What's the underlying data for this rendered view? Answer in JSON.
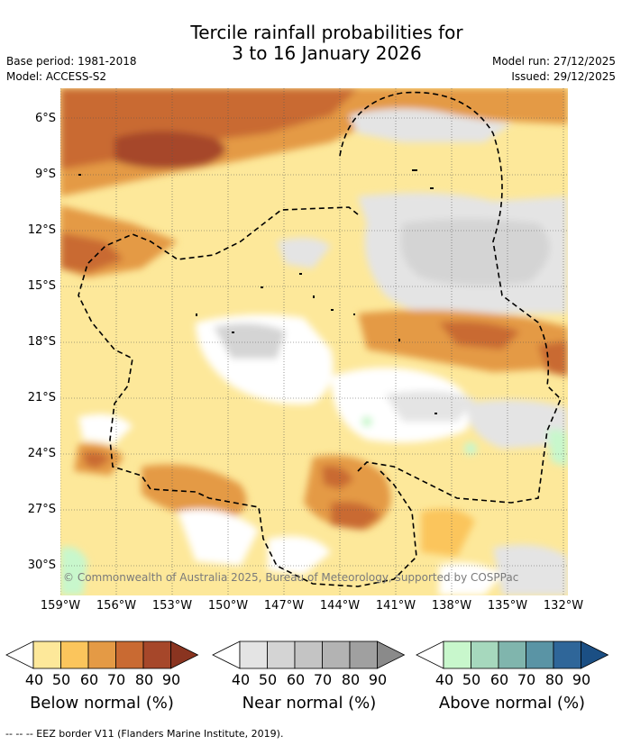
{
  "header": {
    "title_line1": "Tercile rainfall probabilities for",
    "title_line2": "3 to 16 January 2026",
    "base_period": "Base period: 1981-2018",
    "model": "Model: ACCESS-S2",
    "model_run": "Model run: 27/12/2025",
    "issued": "Issued: 29/12/2025"
  },
  "map": {
    "lat_labels": [
      "6°S",
      "9°S",
      "12°S",
      "15°S",
      "18°S",
      "21°S",
      "24°S",
      "27°S",
      "30°S"
    ],
    "lon_labels": [
      "159°W",
      "156°W",
      "153°W",
      "150°W",
      "147°W",
      "144°W",
      "141°W",
      "138°W",
      "135°W",
      "132°W"
    ],
    "copyright": "© Commonwealth of Australia 2025, Bureau of Meteorology, supported by COSPPac"
  },
  "colorbars": [
    {
      "title": "Below normal (%)",
      "ticks": [
        "40",
        "50",
        "60",
        "70",
        "80",
        "90"
      ],
      "colors": [
        "#fde89a",
        "#fbc55c",
        "#e49a45",
        "#c96a32",
        "#a6472a",
        "#8a3420"
      ]
    },
    {
      "title": "Near normal (%)",
      "ticks": [
        "40",
        "50",
        "60",
        "70",
        "80",
        "90"
      ],
      "colors": [
        "#e4e4e4",
        "#d4d4d4",
        "#c4c4c4",
        "#b3b3b3",
        "#a0a0a0",
        "#8a8a8a"
      ]
    },
    {
      "title": "Above normal (%)",
      "ticks": [
        "40",
        "50",
        "60",
        "70",
        "80",
        "90"
      ],
      "colors": [
        "#c8f7cc",
        "#a6d8bd",
        "#80b5ad",
        "#5a94a5",
        "#2f6699",
        "#1b4f84"
      ]
    }
  ],
  "footer": "-- -- -- EEZ border V11 (Flanders Marine Institute, 2019)."
}
